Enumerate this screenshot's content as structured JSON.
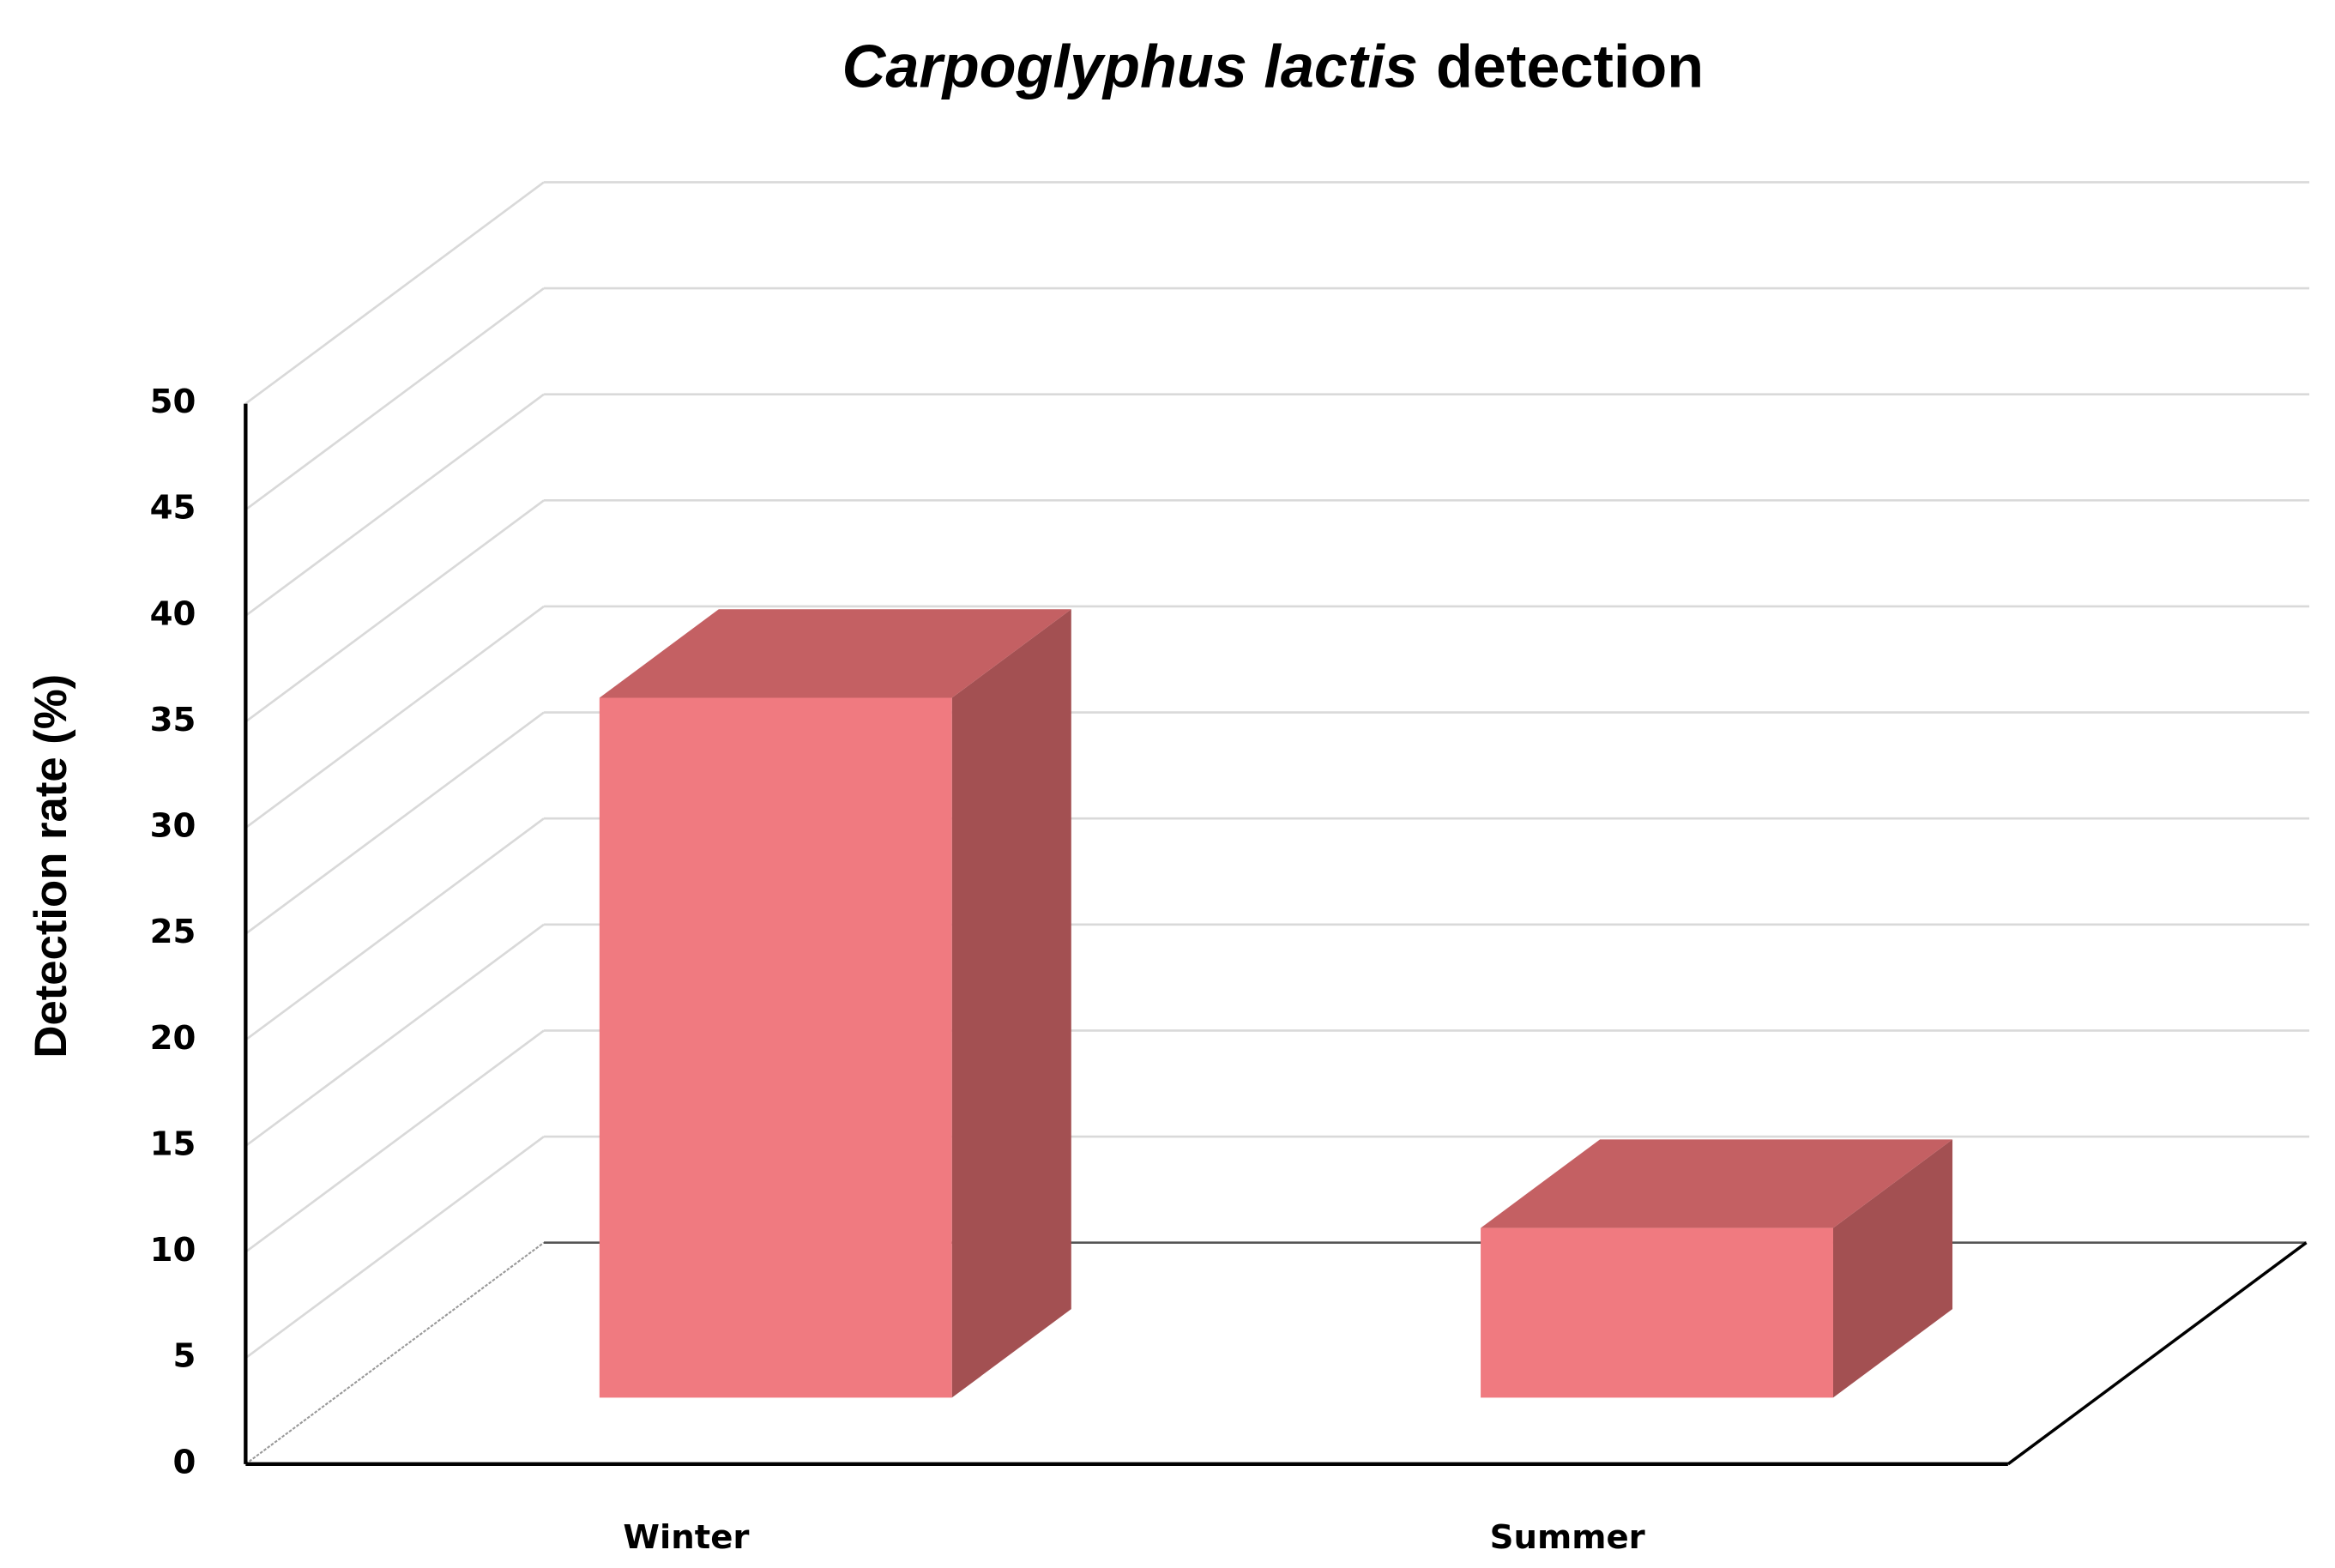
{
  "chart_data": {
    "type": "bar3d",
    "title": [
      "Carpoglyphus lactis",
      "detection"
    ],
    "y_label": "Detection rate (%)",
    "categories": [
      "Winter",
      "Summer"
    ],
    "values": [
      33,
      8
    ],
    "colors": {
      "front": "#f07a80",
      "top": "#c46063",
      "side": "#a35052"
    },
    "ylim": [
      0,
      50
    ],
    "yticks": [
      0,
      5,
      10,
      15,
      20,
      25,
      30,
      35,
      40,
      45,
      50
    ],
    "grid": true
  }
}
